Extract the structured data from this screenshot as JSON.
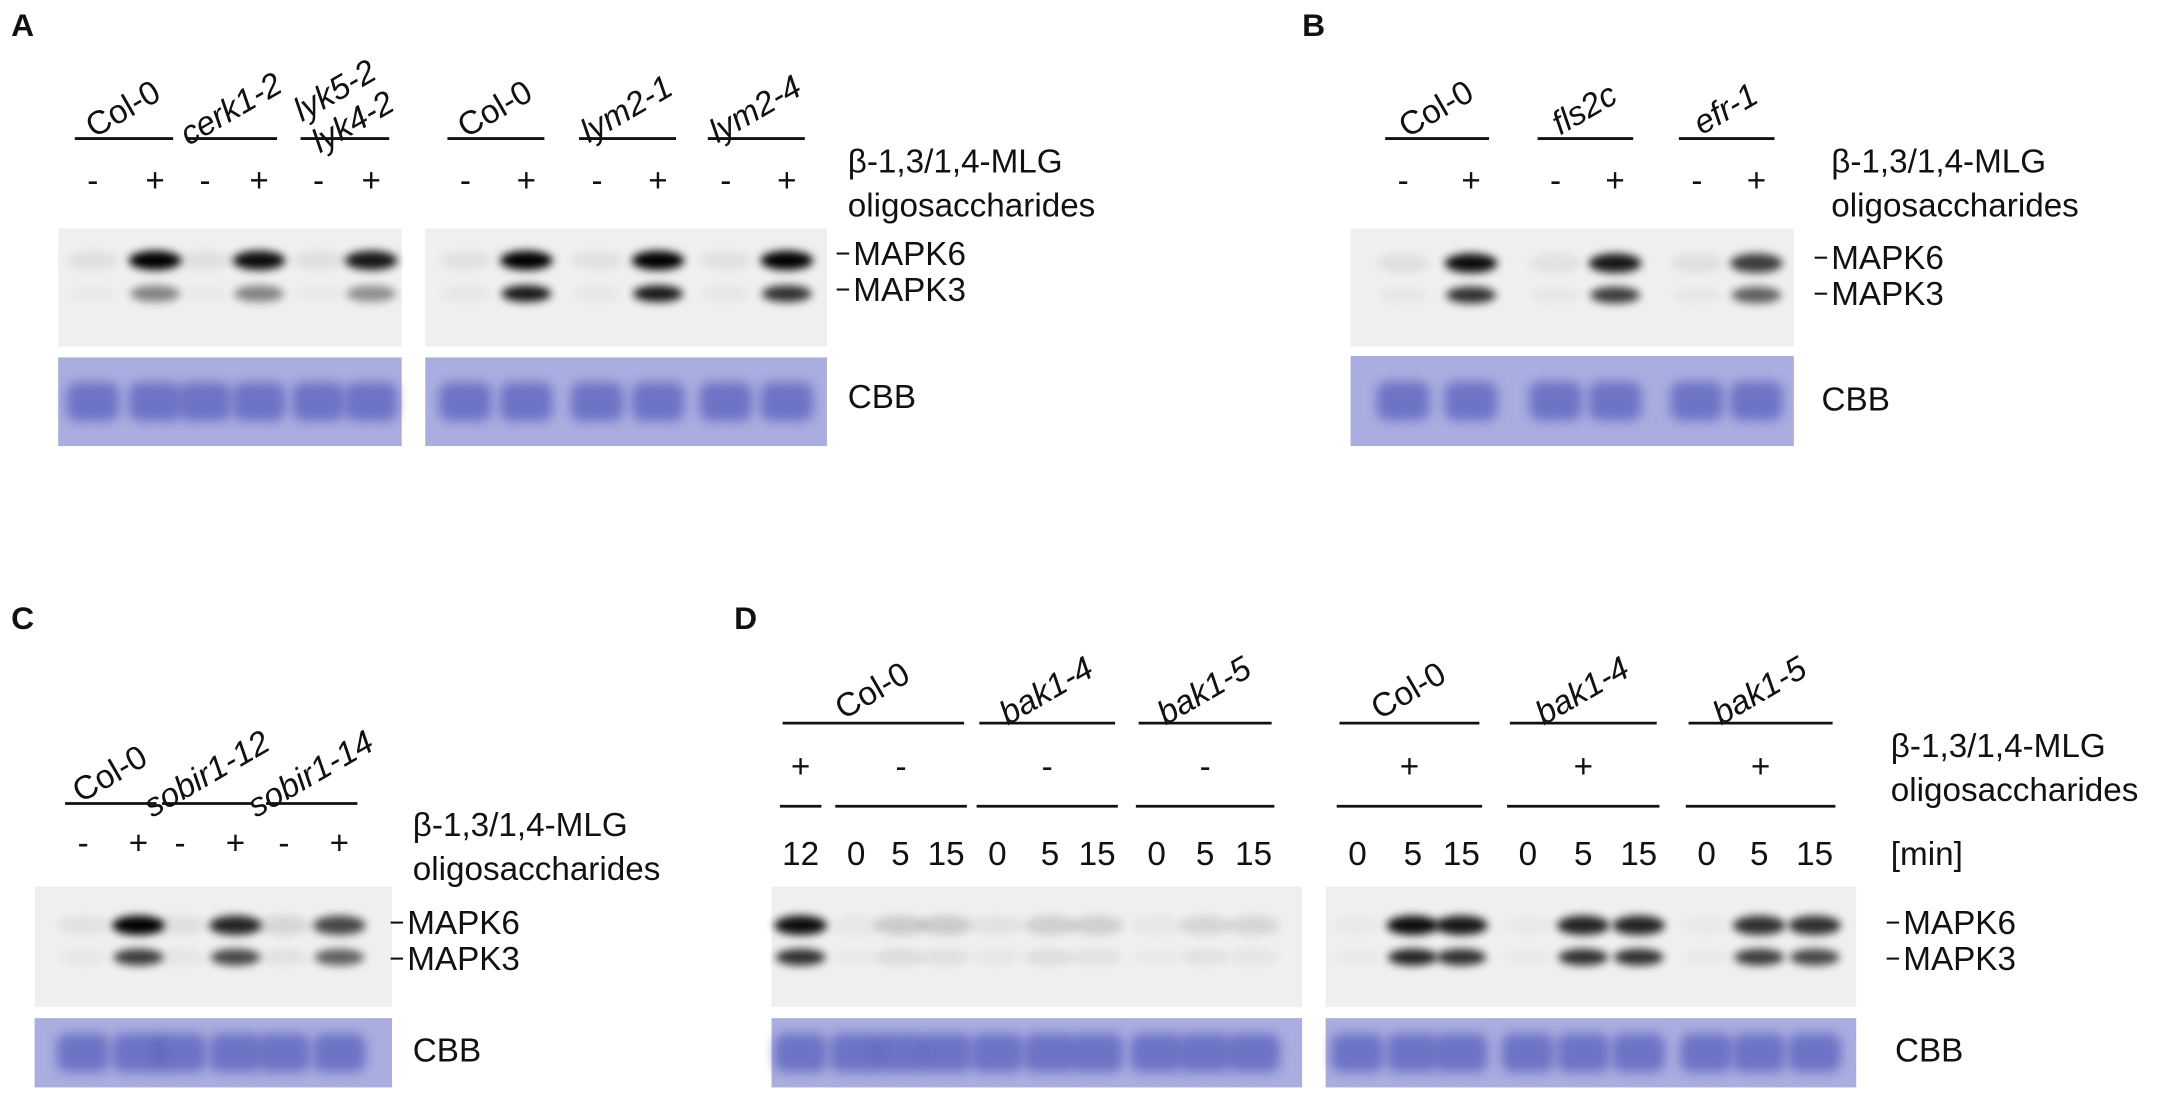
{
  "panels": [
    {
      "letter": "A",
      "genotypes": [
        {
          "label": "Col-0"
        },
        {
          "label": "cerk1-2",
          "italic": true
        },
        {
          "label": [
            "lyk5-2",
            "lyk4-2"
          ],
          "italic": true
        },
        {
          "label": "Col-0"
        },
        {
          "label": "lym2-1",
          "italic": true
        },
        {
          "label": "lym2-4",
          "italic": true
        }
      ],
      "treatment": [
        "-",
        "+",
        "-",
        "+",
        "-",
        "+",
        "-",
        "+",
        "-",
        "+",
        "-",
        "+"
      ],
      "treatment_label": [
        "β-1,3/1,4-MLG",
        "oligosaccharides"
      ],
      "bands": [
        "MAPK6",
        "MAPK3"
      ],
      "stain": "CBB"
    },
    {
      "letter": "B",
      "genotypes": [
        {
          "label": "Col-0"
        },
        {
          "label": "fls2c",
          "italic": true
        },
        {
          "label": "efr-1",
          "italic": true
        }
      ],
      "treatment": [
        "-",
        "+",
        "-",
        "+",
        "-",
        "+"
      ],
      "treatment_label": [
        "β-1,3/1,4-MLG",
        "oligosaccharides"
      ],
      "bands": [
        "MAPK6",
        "MAPK3"
      ],
      "stain": "CBB"
    },
    {
      "letter": "C",
      "genotypes": [
        {
          "label": "Col-0"
        },
        {
          "label": "sobir1-12",
          "italic": true
        },
        {
          "label": "sobir1-14",
          "italic": true
        }
      ],
      "treatment": [
        "-",
        "+",
        "-",
        "+",
        "-",
        "+"
      ],
      "treatment_label": [
        "β-1,3/1,4-MLG",
        "oligosaccharides"
      ],
      "bands": [
        "MAPK6",
        "MAPK3"
      ],
      "stain": "CBB"
    },
    {
      "letter": "D",
      "genotypes": [
        {
          "label": "Col-0"
        },
        {
          "label": "bak1-4",
          "italic": true
        },
        {
          "label": "bak1-5",
          "italic": true
        },
        {
          "label": "Col-0"
        },
        {
          "label": "bak1-4",
          "italic": true
        },
        {
          "label": "bak1-5",
          "italic": true
        }
      ],
      "treatment": [
        "+",
        "-",
        "-",
        "-",
        "+",
        "+",
        "+"
      ],
      "treatment_label": [
        "β-1,3/1,4-MLG",
        "oligosaccharides"
      ],
      "time_points": [
        12,
        0,
        5,
        15,
        0,
        5,
        15,
        0,
        5,
        15,
        0,
        5,
        15,
        0,
        5,
        15,
        0,
        5,
        15
      ],
      "time_unit": "[min]",
      "bands": [
        "MAPK6",
        "MAPK3"
      ],
      "stain": "CBB"
    }
  ]
}
